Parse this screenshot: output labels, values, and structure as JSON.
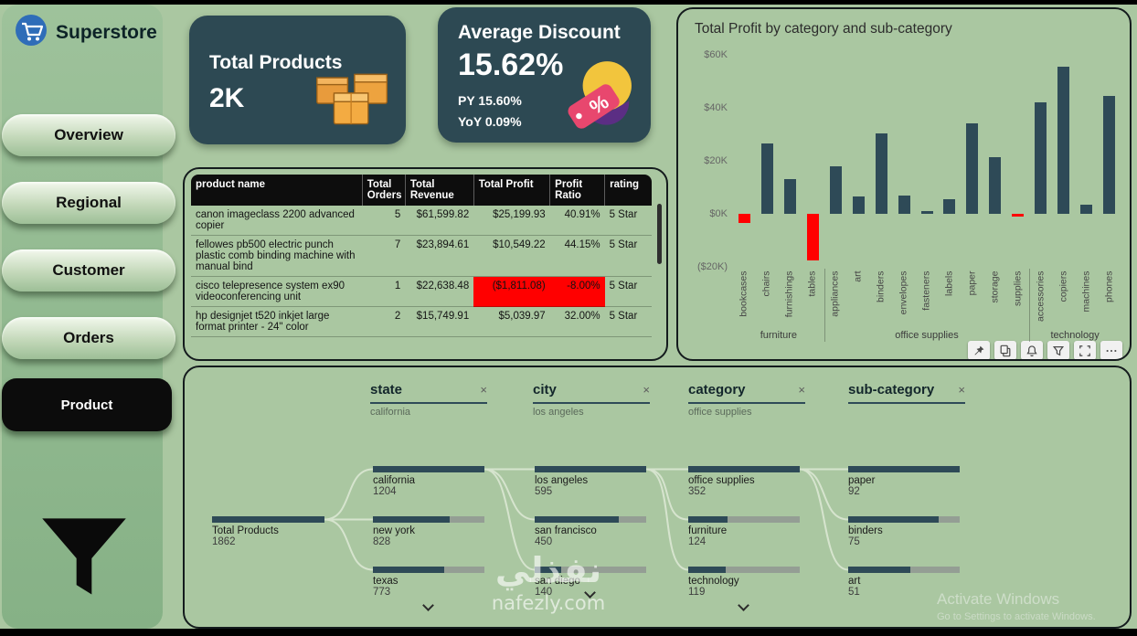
{
  "brand": {
    "title": "Superstore"
  },
  "sidebar": {
    "items": [
      {
        "label": "Overview"
      },
      {
        "label": "Regional"
      },
      {
        "label": "Customer"
      },
      {
        "label": "Orders"
      },
      {
        "label": "Product"
      }
    ],
    "active_item": "Product"
  },
  "cards": {
    "products": {
      "title": "Total Products",
      "value": "2K"
    },
    "discount": {
      "title": "Average Discount",
      "value": "15.62%",
      "py": "PY 15.60%",
      "yoy": "YoY 0.09%"
    }
  },
  "table": {
    "columns": [
      "product name",
      "Total Orders",
      "Total Revenue",
      "Total Profit",
      "Profit Ratio",
      "rating"
    ],
    "rows": [
      {
        "name": "canon imageclass 2200 advanced copier",
        "orders": "5",
        "revenue": "$61,599.82",
        "profit": "$25,199.93",
        "ratio": "40.91%",
        "rating": "5 Star",
        "negative": false
      },
      {
        "name": "fellowes pb500 electric punch plastic comb binding machine with manual bind",
        "orders": "7",
        "revenue": "$23,894.61",
        "profit": "$10,549.22",
        "ratio": "44.15%",
        "rating": "5 Star",
        "negative": false
      },
      {
        "name": "cisco telepresence system ex90 videoconferencing unit",
        "orders": "1",
        "revenue": "$22,638.48",
        "profit": "($1,811.08)",
        "ratio": "-8.00%",
        "rating": "5 Star",
        "negative": true
      },
      {
        "name": "hp designjet t520 inkjet large format printer - 24\" color",
        "orders": "2",
        "revenue": "$15,749.91",
        "profit": "$5,039.97",
        "ratio": "32.00%",
        "rating": "5 Star",
        "negative": false
      }
    ]
  },
  "chart_data": {
    "type": "bar",
    "title": "Total Profit by category and sub-category",
    "categories": [
      "bookcases",
      "chairs",
      "furnishings",
      "tables",
      "appliances",
      "art",
      "binders",
      "envelopes",
      "fasteners",
      "labels",
      "paper",
      "storage",
      "supplies",
      "accessories",
      "copiers",
      "machines",
      "phones"
    ],
    "values": [
      -3.5,
      26.6,
      13.1,
      -17.7,
      18.1,
      6.5,
      30.2,
      7.0,
      0.9,
      5.5,
      34.1,
      21.3,
      -1.2,
      41.9,
      55.6,
      3.4,
      44.5
    ],
    "value_unit": "K USD",
    "groups": [
      {
        "label": "furniture",
        "count": 4
      },
      {
        "label": "office supplies",
        "count": 9
      },
      {
        "label": "technology",
        "count": 4
      }
    ],
    "xlabel": "",
    "ylabel": "",
    "ylim": [
      -20,
      60
    ],
    "yticks": [
      {
        "label": "$60K",
        "value": 60
      },
      {
        "label": "$40K",
        "value": 40
      },
      {
        "label": "$20K",
        "value": 20
      },
      {
        "label": "$0K",
        "value": 0
      },
      {
        "label": "($20K)",
        "value": -20
      }
    ],
    "grid": false,
    "legend": "none",
    "colors": {
      "positive": "#2e4a57",
      "negative": "#ff0000"
    }
  },
  "chart_toolbar": {
    "icons": [
      "pin-icon",
      "copy-icon",
      "alert-icon",
      "filter-icon",
      "focus-mode-icon",
      "more-options-icon"
    ]
  },
  "tree": {
    "headers": [
      {
        "label": "state",
        "value": "california"
      },
      {
        "label": "city",
        "value": "los angeles"
      },
      {
        "label": "category",
        "value": "office supplies"
      },
      {
        "label": "sub-category",
        "value": ""
      }
    ],
    "root": {
      "label": "Total Products",
      "value": "1862"
    },
    "columns": [
      {
        "name": "state",
        "more": true,
        "nodes": [
          {
            "label": "california",
            "value": "1204"
          },
          {
            "label": "new york",
            "value": "828"
          },
          {
            "label": "texas",
            "value": "773"
          }
        ]
      },
      {
        "name": "city",
        "more": true,
        "nodes": [
          {
            "label": "los angeles",
            "value": "595"
          },
          {
            "label": "san francisco",
            "value": "450"
          },
          {
            "label": "san diego",
            "value": "140"
          }
        ]
      },
      {
        "name": "category",
        "more": true,
        "nodes": [
          {
            "label": "office supplies",
            "value": "352"
          },
          {
            "label": "furniture",
            "value": "124"
          },
          {
            "label": "technology",
            "value": "119"
          }
        ]
      },
      {
        "name": "sub-category",
        "more": false,
        "nodes": [
          {
            "label": "paper",
            "value": "92"
          },
          {
            "label": "binders",
            "value": "75"
          },
          {
            "label": "art",
            "value": "51"
          }
        ]
      }
    ]
  },
  "watermark": {
    "arabic": "نفذلي",
    "site": "nafezly.com"
  },
  "activation": {
    "title": "Activate Windows",
    "subtitle": "Go to Settings to activate Windows."
  }
}
